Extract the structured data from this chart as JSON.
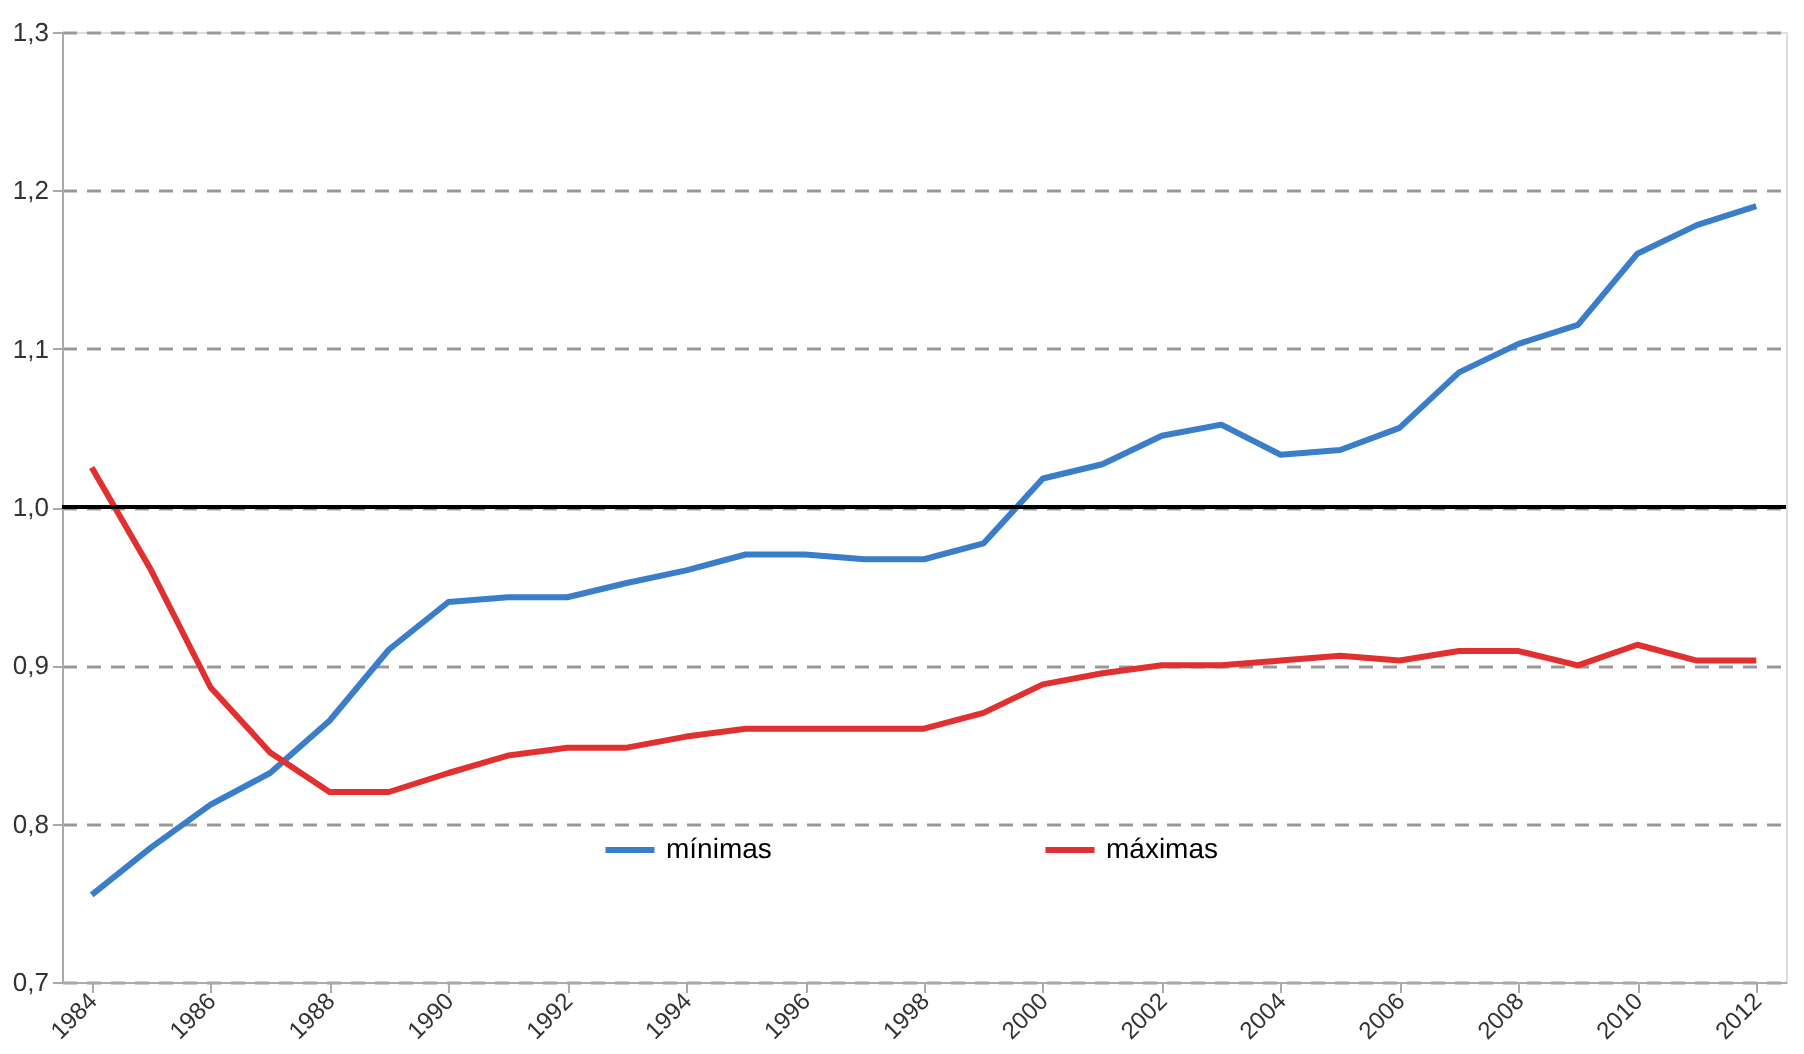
{
  "chart_data": {
    "type": "line",
    "x": [
      1984,
      1985,
      1986,
      1987,
      1988,
      1989,
      1990,
      1991,
      1992,
      1993,
      1994,
      1995,
      1996,
      1997,
      1998,
      1999,
      2000,
      2001,
      2002,
      2003,
      2004,
      2005,
      2006,
      2007,
      2008,
      2009,
      2010,
      2011,
      2012
    ],
    "series": [
      {
        "name": "mínimas",
        "color": "#3a7dc9",
        "values": [
          0.755,
          0.785,
          0.812,
          0.832,
          0.865,
          0.91,
          0.94,
          0.943,
          0.943,
          0.952,
          0.96,
          0.97,
          0.97,
          0.967,
          0.967,
          0.977,
          1.018,
          1.027,
          1.045,
          1.052,
          1.033,
          1.036,
          1.05,
          1.085,
          1.103,
          1.115,
          1.16,
          1.178,
          1.19
        ]
      },
      {
        "name": "máximas",
        "color": "#e0302f",
        "values": [
          1.025,
          0.96,
          0.886,
          0.845,
          0.82,
          0.82,
          0.832,
          0.843,
          0.848,
          0.848,
          0.855,
          0.86,
          0.86,
          0.86,
          0.86,
          0.87,
          0.888,
          0.895,
          0.9,
          0.9,
          0.903,
          0.906,
          0.903,
          0.909,
          0.909,
          0.9,
          0.913,
          0.903,
          0.903
        ]
      }
    ],
    "xlim": [
      1983.5,
      2012.5
    ],
    "xticks": [
      1984,
      1986,
      1988,
      1990,
      1992,
      1994,
      1996,
      1998,
      2000,
      2002,
      2004,
      2006,
      2008,
      2010,
      2012
    ],
    "ylim": [
      0.7,
      1.3
    ],
    "yticks": [
      {
        "value": 0.7,
        "label": "0,7"
      },
      {
        "value": 0.8,
        "label": "0,8"
      },
      {
        "value": 0.9,
        "label": "0,9"
      },
      {
        "value": 1.0,
        "label": "1,0"
      },
      {
        "value": 1.1,
        "label": "1,1"
      },
      {
        "value": 1.2,
        "label": "1,2"
      },
      {
        "value": 1.3,
        "label": "1,3"
      }
    ],
    "ref_lines": [
      {
        "axis": "y",
        "value": 1.0,
        "color": "#000000",
        "line_style": "solid"
      }
    ],
    "grid": "y",
    "legend": "bottom",
    "marker": "none",
    "line_style": "solid"
  }
}
